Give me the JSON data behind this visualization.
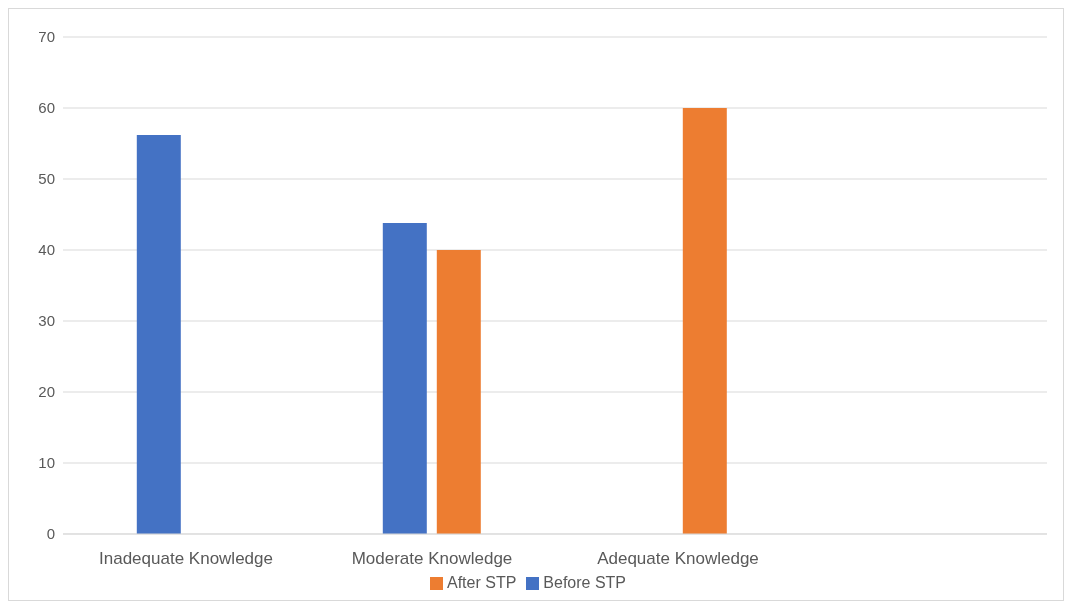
{
  "chart_data": {
    "type": "bar",
    "categories": [
      "Inadequate Knowledge",
      "Moderate Knowledge",
      "Adequate Knowledge",
      null
    ],
    "series": [
      {
        "name": "Before STP",
        "color": "#4472c4",
        "values": [
          56.2,
          43.8,
          0,
          null
        ]
      },
      {
        "name": "After STP",
        "color": "#ed7d31",
        "values": [
          0,
          40,
          60,
          null
        ]
      }
    ],
    "ylim": [
      0,
      70
    ],
    "yticks": [
      0,
      10,
      20,
      30,
      40,
      50,
      60,
      70
    ],
    "grid": "y",
    "legend": "bottom"
  }
}
